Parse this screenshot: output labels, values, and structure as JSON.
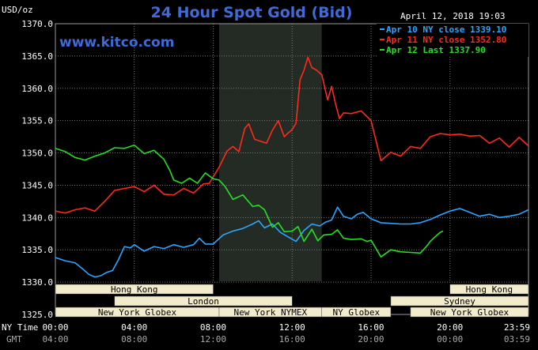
{
  "header": {
    "title": "24 Hour Spot Gold (Bid)",
    "unit": "USD/oz",
    "timestamp": "April 12, 2018 19:03",
    "site": "www.kitco.com"
  },
  "colors": {
    "apr10": "#2aa6ff",
    "apr11": "#ff2a1a",
    "apr12": "#22e022",
    "title": "#3f6bd9",
    "grid": "#7a7a7a",
    "session": "#f2eccd",
    "shade": "#242b24"
  },
  "chart_data": {
    "type": "line",
    "title": "24 Hour Spot Gold (Bid)",
    "ylabel": "USD/oz",
    "ylim": [
      1325,
      1370
    ],
    "y_ticks": [
      "1370.0",
      "1365.0",
      "1360.0",
      "1355.0",
      "1350.0",
      "1345.0",
      "1340.0",
      "1335.0",
      "1330.0",
      "1325.0"
    ],
    "x_ticks_ny": [
      "00:00",
      "04:00",
      "08:00",
      "12:00",
      "16:00",
      "20:00",
      "23:59"
    ],
    "x_ticks_gmt": [
      "04:00",
      "08:00",
      "12:00",
      "16:00",
      "20:00",
      "00:00",
      "03:59"
    ],
    "x_axis_label_ny": "NY Time",
    "x_axis_label_gmt": "GMT",
    "shaded_hours": [
      8.3,
      13.5
    ],
    "legend": [
      {
        "key": "apr10",
        "label": "Apr 10 NY close 1339.10"
      },
      {
        "key": "apr11",
        "label": "Apr 11 NY close 1352.80"
      },
      {
        "key": "apr12",
        "label": "Apr 12 Last 1337.90"
      }
    ],
    "series": [
      {
        "key": "apr10",
        "name": "Apr 10 NY close 1339.10",
        "x": [
          0,
          0.5,
          1,
          1.4,
          1.7,
          2,
          2.3,
          2.6,
          2.9,
          3.2,
          3.5,
          3.8,
          4,
          4.5,
          5,
          5.5,
          6,
          6.5,
          7,
          7.3,
          7.6,
          8,
          8.5,
          9,
          9.5,
          10,
          10.3,
          10.6,
          11,
          11.4,
          11.8,
          12.2,
          12.6,
          13,
          13.4,
          13.7,
          14,
          14.3,
          14.6,
          15,
          15.3,
          15.6,
          16,
          16.5,
          17,
          17.5,
          18,
          18.5,
          19,
          19.5,
          20,
          20.5,
          21,
          21.5,
          22,
          22.5,
          23,
          23.5,
          23.98
        ],
        "y": [
          1333.8,
          1333.3,
          1333,
          1332,
          1331.2,
          1330.8,
          1331,
          1331.5,
          1331.8,
          1333.5,
          1335.5,
          1335.3,
          1335.8,
          1334.8,
          1335.5,
          1335.2,
          1335.8,
          1335.4,
          1335.8,
          1336.8,
          1335.9,
          1335.9,
          1337.3,
          1337.9,
          1338.3,
          1339,
          1339.5,
          1338.4,
          1339,
          1337.7,
          1337,
          1336.3,
          1338,
          1339,
          1338.7,
          1339.3,
          1339.6,
          1341.6,
          1340.2,
          1339.8,
          1340.5,
          1340.8,
          1339.8,
          1339.2,
          1339.1,
          1339,
          1339,
          1339.2,
          1339.7,
          1340.4,
          1341,
          1341.4,
          1340.8,
          1340.2,
          1340.5,
          1340,
          1340.2,
          1340.5,
          1341.2
        ]
      },
      {
        "key": "apr11",
        "name": "Apr 11 NY close 1352.80",
        "x": [
          0,
          0.5,
          1,
          1.5,
          2,
          2.5,
          3,
          3.5,
          4,
          4.5,
          5,
          5.5,
          6,
          6.5,
          7,
          7.5,
          7.8,
          8,
          8.3,
          8.7,
          9,
          9.3,
          9.6,
          9.8,
          10.1,
          10.4,
          10.7,
          11,
          11.3,
          11.6,
          11.8,
          12,
          12.2,
          12.4,
          12.6,
          12.8,
          13,
          13.2,
          13.5,
          13.8,
          14,
          14.2,
          14.4,
          14.6,
          15,
          15.5,
          16,
          16.5,
          17,
          17.5,
          18,
          18.5,
          19,
          19.5,
          20,
          20.5,
          21,
          21.5,
          22,
          22.5,
          23,
          23.5,
          23.98
        ],
        "y": [
          1341,
          1340.7,
          1341.2,
          1341.5,
          1341,
          1342.5,
          1344.2,
          1344.5,
          1344.8,
          1344,
          1345,
          1343.6,
          1343.5,
          1344.5,
          1343.8,
          1345.2,
          1345.3,
          1346.3,
          1347.8,
          1350.3,
          1351,
          1350.2,
          1353.8,
          1354.5,
          1352.1,
          1351.8,
          1351.5,
          1353.5,
          1355,
          1352.5,
          1353.1,
          1353.6,
          1354.6,
          1361.3,
          1362.8,
          1364.8,
          1363.2,
          1362.9,
          1362.1,
          1358.2,
          1360.3,
          1357.6,
          1355.3,
          1356.2,
          1356.1,
          1356.5,
          1355,
          1348.8,
          1350.1,
          1349.5,
          1351,
          1350.7,
          1352.5,
          1353,
          1352.8,
          1352.9,
          1352.6,
          1352.7,
          1351.5,
          1352.3,
          1350.9,
          1352.4,
          1351.1
        ]
      },
      {
        "key": "apr12",
        "name": "Apr 12 Last 1337.90",
        "x": [
          0,
          0.5,
          1,
          1.5,
          2,
          2.5,
          3,
          3.5,
          4,
          4.5,
          5,
          5.5,
          5.8,
          6,
          6.4,
          6.8,
          7.2,
          7.6,
          8,
          8.3,
          8.6,
          9,
          9.5,
          10,
          10.3,
          10.6,
          11,
          11.3,
          11.6,
          12,
          12.3,
          12.6,
          13,
          13.3,
          13.6,
          14,
          14.3,
          14.6,
          15,
          15.5,
          15.8,
          16,
          16.5,
          17,
          17.5,
          18,
          18.5,
          18.8,
          19,
          19.2,
          19.5,
          19.65
        ],
        "y": [
          1350.7,
          1350.2,
          1349.3,
          1348.9,
          1349.5,
          1350,
          1350.8,
          1350.7,
          1351.2,
          1349.9,
          1350.4,
          1349,
          1347.3,
          1345.8,
          1345.3,
          1346.1,
          1345.3,
          1346.9,
          1346,
          1345.8,
          1344.8,
          1342.8,
          1343.5,
          1341.7,
          1341.9,
          1341.2,
          1338.5,
          1339.2,
          1337.8,
          1337.9,
          1338.6,
          1336.3,
          1338.2,
          1336.4,
          1337.3,
          1337.4,
          1338.1,
          1336.8,
          1336.6,
          1336.7,
          1336.3,
          1336.5,
          1333.9,
          1335,
          1334.7,
          1334.6,
          1334.5,
          1335.5,
          1336.3,
          1336.9,
          1337.7,
          1337.9
        ]
      }
    ]
  },
  "sessions": {
    "row1": [
      {
        "label": "Hong Kong",
        "start": 0,
        "end": 8
      },
      {
        "label": "Hong Kong",
        "start": 20,
        "end": 23.98
      }
    ],
    "row2": [
      {
        "label": "London",
        "start": 3,
        "end": 12
      },
      {
        "label": "Sydney",
        "start": 17,
        "end": 23.98
      }
    ],
    "row3": [
      {
        "label": "New York Globex",
        "start": 0,
        "end": 8.3
      },
      {
        "label": "New York NYMEX",
        "start": 8.3,
        "end": 13.5
      },
      {
        "label": "NY Globex",
        "start": 13.5,
        "end": 17
      },
      {
        "label": "New York Globex",
        "start": 18,
        "end": 23.98
      }
    ]
  }
}
